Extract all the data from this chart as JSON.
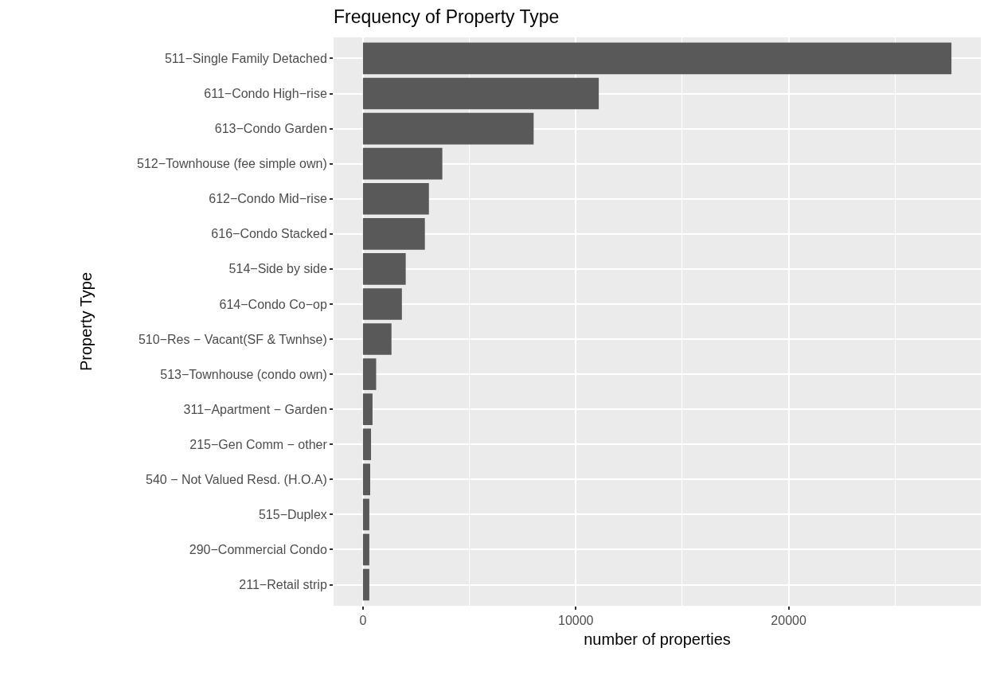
{
  "chart_data": {
    "type": "bar",
    "orientation": "horizontal",
    "title": "Frequency of Property Type",
    "xlabel": "number of properties",
    "ylabel": "Property Type",
    "categories": [
      "511−Single Family Detached",
      "611−Condo High−rise",
      "613−Condo Garden",
      "512−Townhouse (fee simple own)",
      "612−Condo Mid−rise",
      "616−Condo Stacked",
      "514−Side by side",
      "614−Condo Co−op",
      "510−Res − Vacant(SF & Twnhse)",
      "513−Townhouse (condo own)",
      "311−Apartment − Garden",
      "215−Gen Comm − other",
      "540 − Not Valued Resd. (H.O.A)",
      "515−Duplex",
      "290−Commercial Condo",
      "211−Retail strip"
    ],
    "values": [
      27650,
      11080,
      8020,
      3730,
      3100,
      2910,
      2010,
      1830,
      1340,
      620,
      450,
      380,
      340,
      300,
      300,
      300
    ],
    "color": "#595959",
    "xlim": [
      -1380,
      29030
    ],
    "xticks": [
      0,
      10000,
      20000
    ],
    "grid": true
  }
}
